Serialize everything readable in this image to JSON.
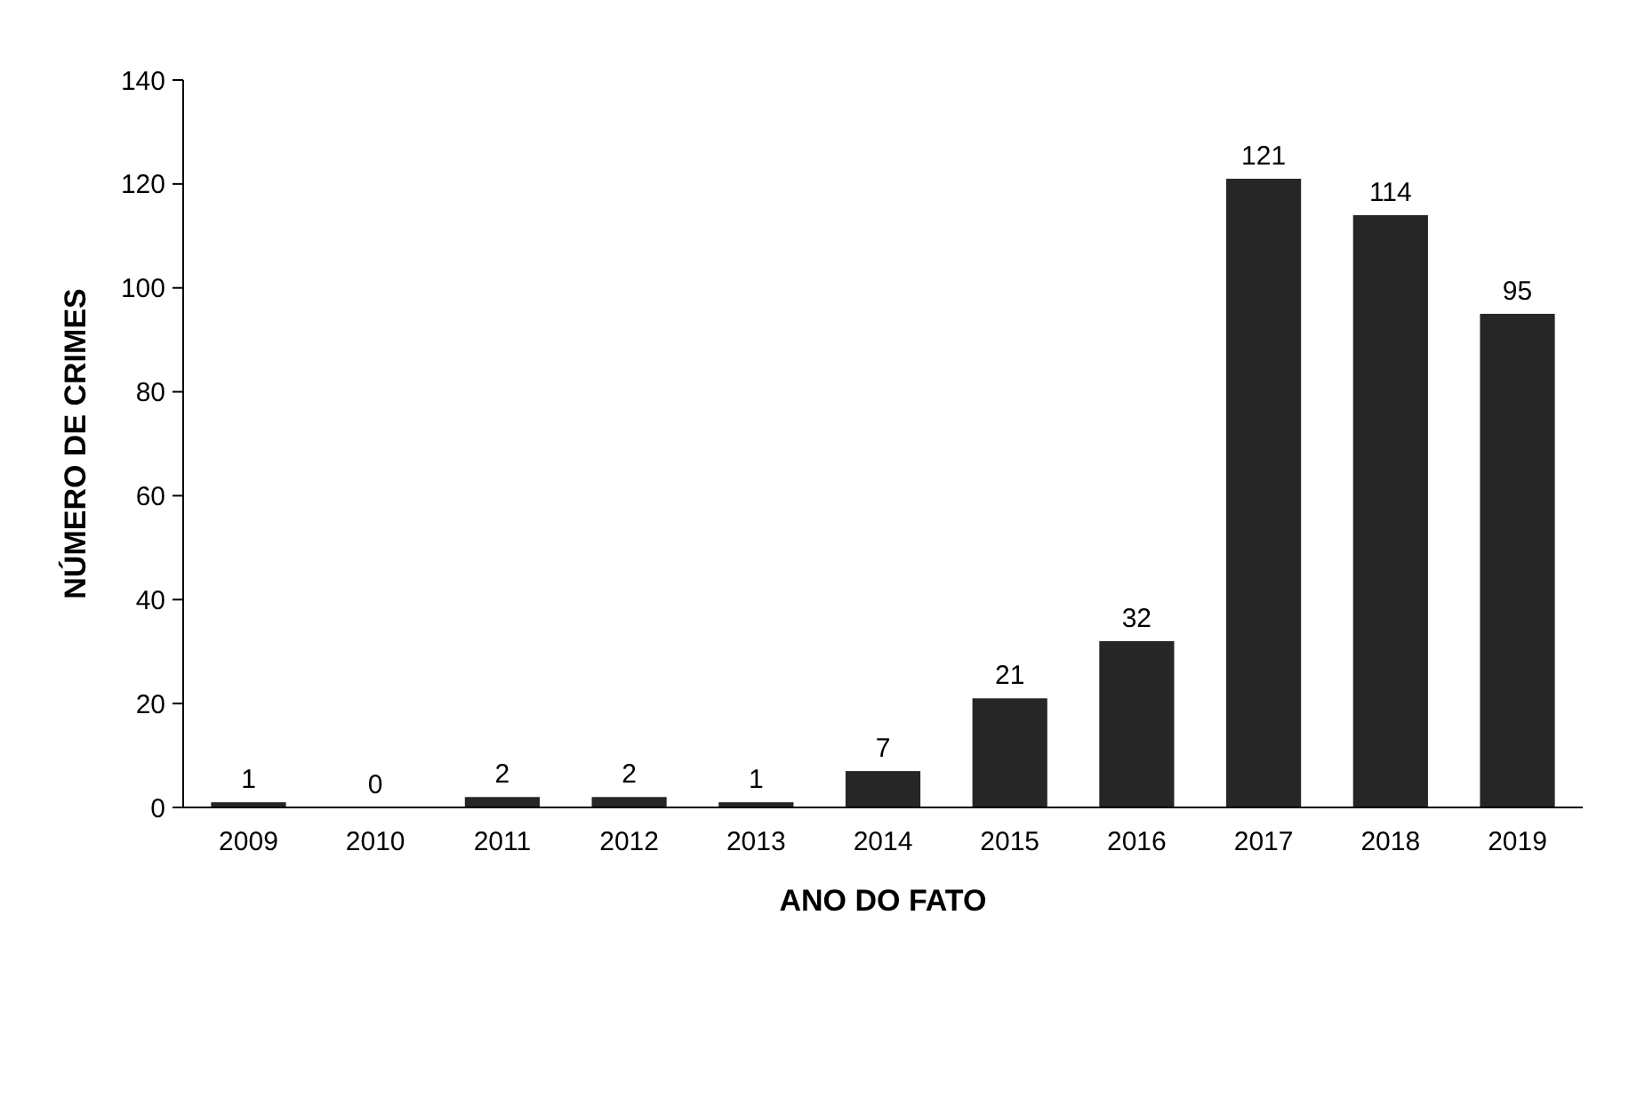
{
  "chart_data": {
    "type": "bar",
    "xlabel": "ANO DO FATO",
    "ylabel": "NÚMERO DE CRIMES",
    "categories": [
      "2009",
      "2010",
      "2011",
      "2012",
      "2013",
      "2014",
      "2015",
      "2016",
      "2017",
      "2018",
      "2019"
    ],
    "values": [
      1,
      0,
      2,
      2,
      1,
      7,
      21,
      32,
      121,
      114,
      95
    ],
    "color": "#262626",
    "ylim": [
      0,
      140
    ],
    "yticks": [
      0,
      20,
      40,
      60,
      80,
      100,
      120,
      140
    ],
    "data_labels": true,
    "grid": false
  }
}
